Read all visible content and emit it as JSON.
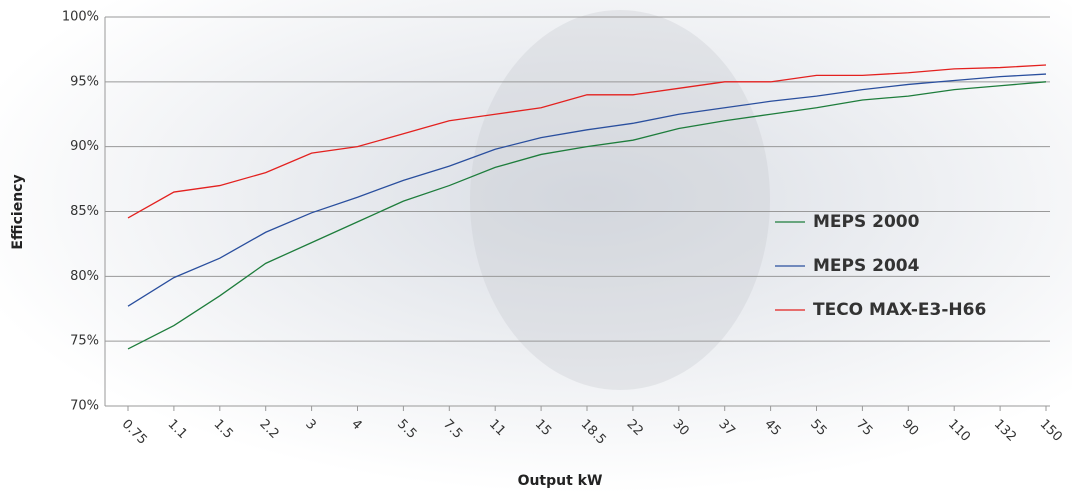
{
  "chart_data": {
    "type": "line",
    "x_label": "Output kW",
    "y_label": "Efficiency",
    "categories": [
      "0.75",
      "1.1",
      "1.5",
      "2.2",
      "3",
      "4",
      "5.5",
      "7.5",
      "11",
      "15",
      "18.5",
      "22",
      "30",
      "37",
      "45",
      "55",
      "75",
      "90",
      "110",
      "132",
      "150"
    ],
    "series": [
      {
        "name": "MEPS 2000",
        "color": "#1e7d3c",
        "values": [
          74.4,
          76.2,
          78.5,
          81,
          82.6,
          84.2,
          85.8,
          87,
          88.4,
          89.4,
          90,
          90.5,
          91.4,
          92,
          92.5,
          93,
          93.6,
          93.9,
          94.4,
          94.7,
          95
        ]
      },
      {
        "name": "MEPS 2004",
        "color": "#2a4f9e",
        "values": [
          77.7,
          79.9,
          81.4,
          83.4,
          84.9,
          86.1,
          87.4,
          88.5,
          89.8,
          90.7,
          91.3,
          91.8,
          92.5,
          93,
          93.5,
          93.9,
          94.4,
          94.8,
          95.1,
          95.4,
          95.6
        ]
      },
      {
        "name": "TECO MAX-E3-H66",
        "color": "#e3211f",
        "values": [
          84.5,
          86.5,
          87,
          88,
          89.5,
          90,
          91,
          92,
          92.5,
          93,
          94,
          94,
          94.5,
          95,
          95,
          95.5,
          95.5,
          95.7,
          96,
          96.1,
          96.3
        ]
      }
    ],
    "ylim": [
      70,
      100
    ],
    "yticks": [
      {
        "value": 70,
        "label": "70%"
      },
      {
        "value": 75,
        "label": "75%"
      },
      {
        "value": 80,
        "label": "80%"
      },
      {
        "value": 85,
        "label": "85%"
      },
      {
        "value": 90,
        "label": "90%"
      },
      {
        "value": 95,
        "label": "95%"
      },
      {
        "value": 100,
        "label": "100%"
      }
    ],
    "grid": true,
    "legend": "right"
  }
}
